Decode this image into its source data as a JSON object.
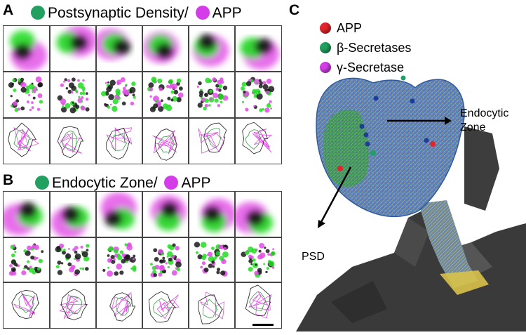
{
  "panels": {
    "A": {
      "letter": "A",
      "header_part1": "Postsynaptic Density/",
      "header_part2": "APP",
      "colors": {
        "green": "#21a060",
        "magenta": "#d33ce8"
      }
    },
    "B": {
      "letter": "B",
      "header_part1": "Endocytic Zone/",
      "header_part2": "APP",
      "colors": {
        "green": "#21a060",
        "magenta": "#d33ce8"
      }
    },
    "C": {
      "letter": "C",
      "legend": [
        {
          "label": "APP",
          "color": "#e3242b"
        },
        {
          "label": "β-Secretases",
          "color": "#21a060"
        },
        {
          "label": "γ-Secretase",
          "color": "#d33ce8"
        }
      ],
      "callout_endocytic_line1": "Endocytic",
      "callout_endocytic_line2": "Zone",
      "callout_psd": "PSD"
    }
  },
  "colors": {
    "micro_green": "#22dd22",
    "micro_magenta": "#e24be6",
    "dark": "#1a1a1a",
    "spine_mesh": "#3f6cb7",
    "dendrite": "#3a3a3a",
    "neck_yellow": "#d8c24a"
  }
}
